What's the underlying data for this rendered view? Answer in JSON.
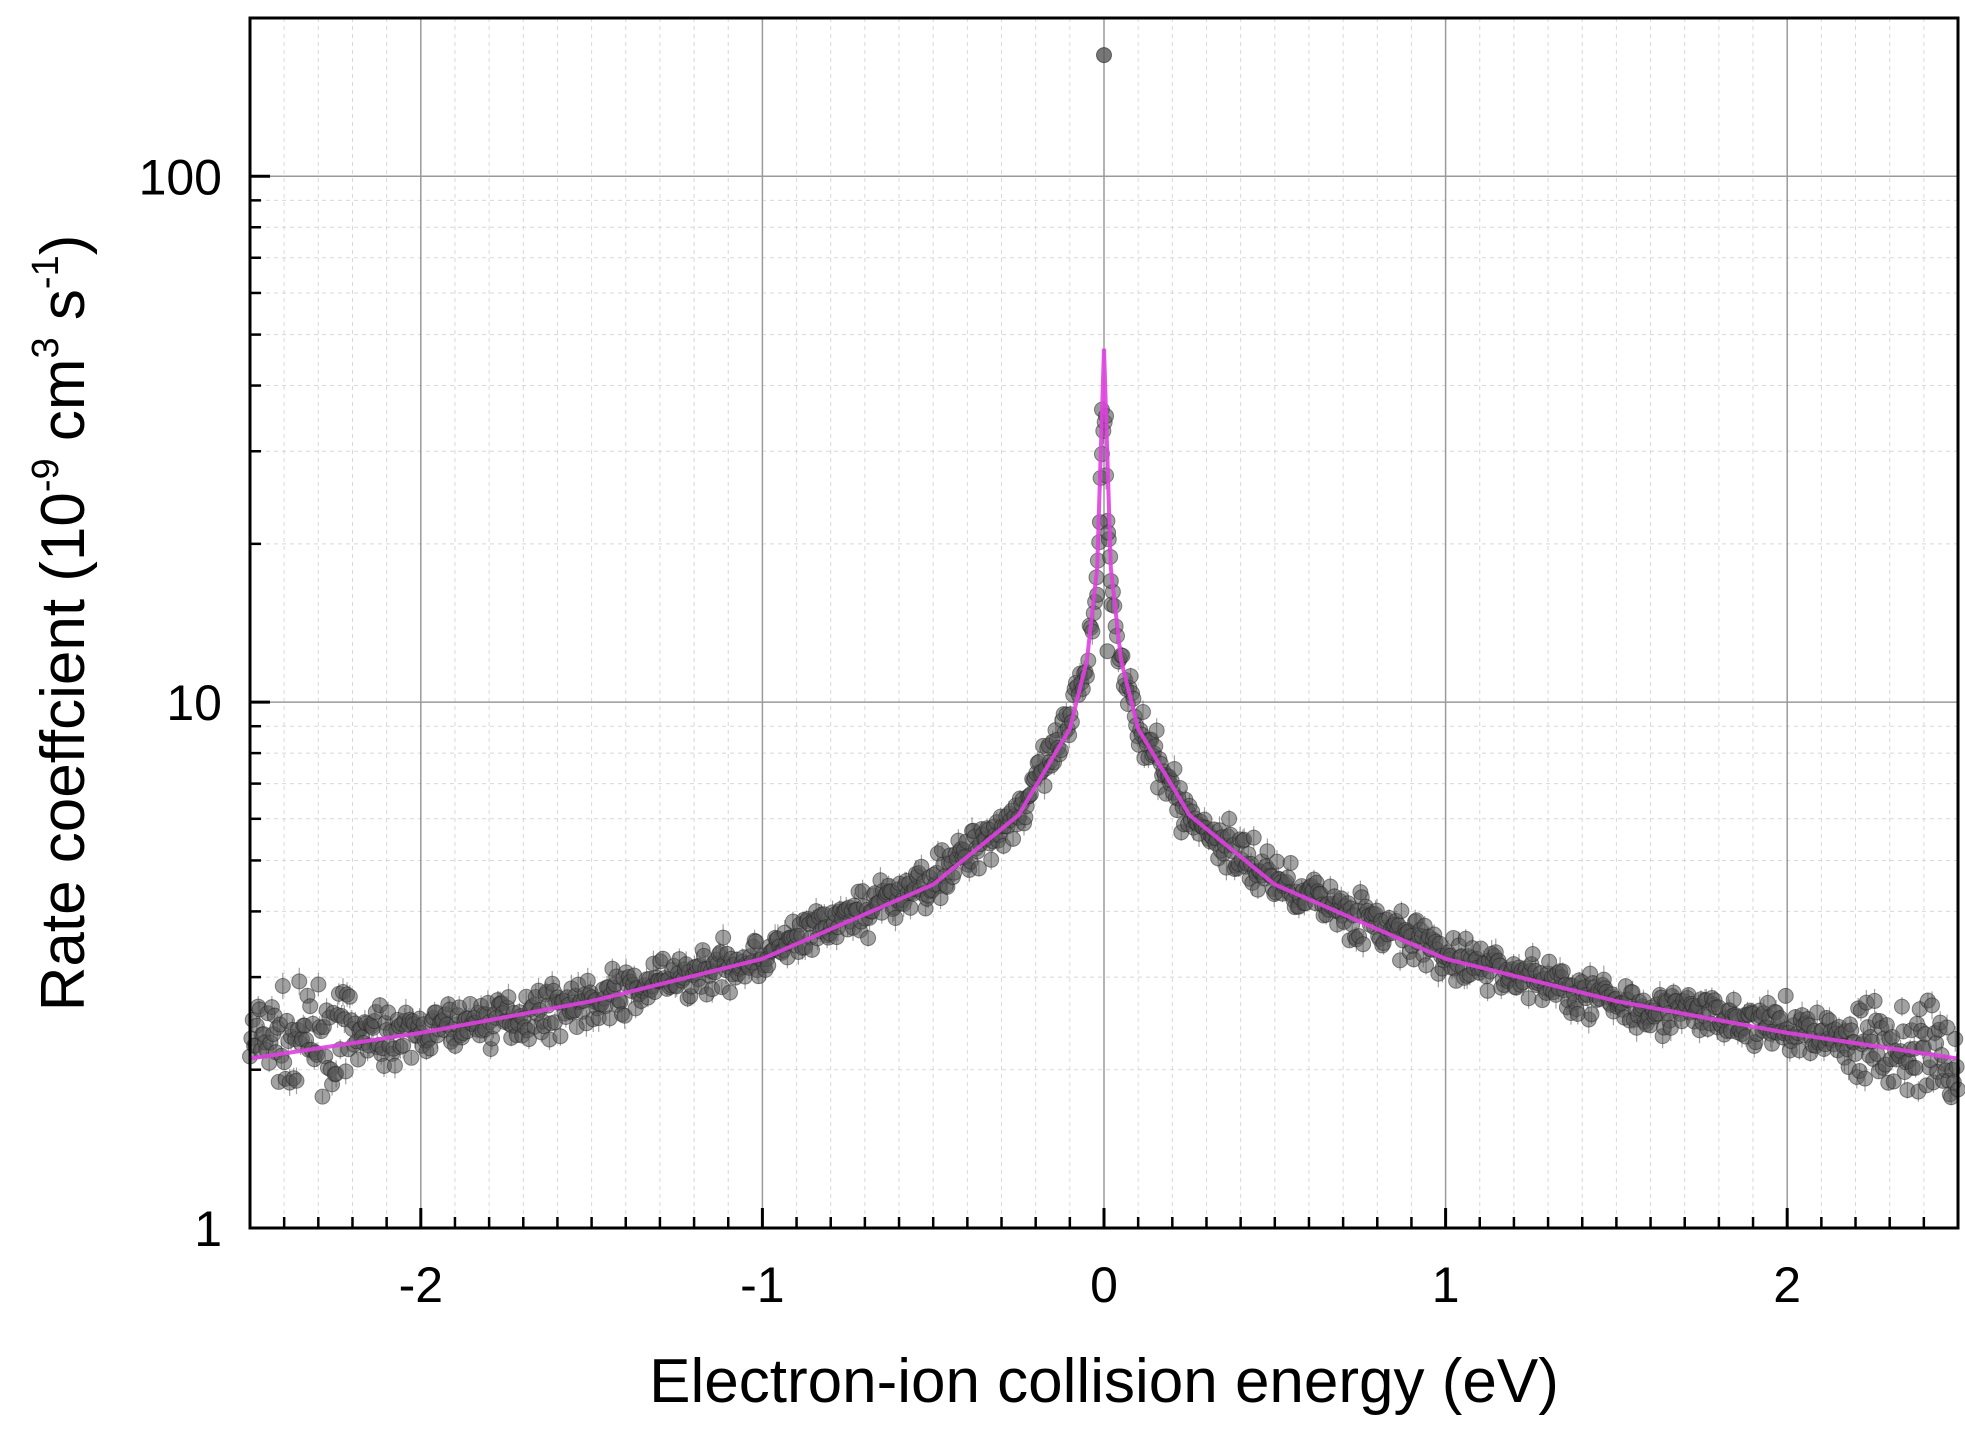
{
  "chart_data": {
    "type": "scatter",
    "title": "",
    "xlabel": "Electron-ion collision energy (eV)",
    "ylabel": {
      "prefix": "Rate coeffcient (10",
      "exp1": "-9",
      "mid1": " cm",
      "exp2": "3",
      "mid2": " s",
      "exp3": "-1",
      "suffix": ")"
    },
    "xlim": [
      -2.5,
      2.5
    ],
    "ylim": [
      1,
      200
    ],
    "yscale": "log",
    "grid": true,
    "x_ticks": [
      {
        "value": -2,
        "label": "-2"
      },
      {
        "value": -1,
        "label": "-1"
      },
      {
        "value": 0,
        "label": "0"
      },
      {
        "value": 1,
        "label": "1"
      },
      {
        "value": 2,
        "label": "2"
      }
    ],
    "y_ticks": [
      {
        "value": 1,
        "label": "1"
      },
      {
        "value": 10,
        "label": "10"
      },
      {
        "value": 100,
        "label": "100"
      }
    ],
    "series": [
      {
        "kind": "scatter-with-error-bars",
        "color": "#555555",
        "description_points": [
          {
            "x": -2.5,
            "y": 2.25
          },
          {
            "x": -2.0,
            "y": 2.35
          },
          {
            "x": -1.5,
            "y": 2.7
          },
          {
            "x": -1.0,
            "y": 3.3
          },
          {
            "x": -0.5,
            "y": 4.6
          },
          {
            "x": -0.25,
            "y": 6.2
          },
          {
            "x": -0.1,
            "y": 9.0
          },
          {
            "x": -0.05,
            "y": 12.0
          },
          {
            "x": -0.02,
            "y": 17.0
          },
          {
            "x": 0.0,
            "y": 36.0
          },
          {
            "x": 0.02,
            "y": 17.0
          },
          {
            "x": 0.05,
            "y": 12.0
          },
          {
            "x": 0.1,
            "y": 8.8
          },
          {
            "x": 0.25,
            "y": 6.0
          },
          {
            "x": 0.5,
            "y": 4.6
          },
          {
            "x": 1.0,
            "y": 3.3
          },
          {
            "x": 1.5,
            "y": 2.7
          },
          {
            "x": 2.0,
            "y": 2.4
          },
          {
            "x": 2.5,
            "y": 2.1
          }
        ],
        "outlier": {
          "x": 0.0,
          "y": 170
        }
      },
      {
        "kind": "fit-line",
        "color": "#e040e0",
        "points": [
          {
            "x": -2.5,
            "y": 2.1
          },
          {
            "x": -2.0,
            "y": 2.35
          },
          {
            "x": -1.5,
            "y": 2.7
          },
          {
            "x": -1.0,
            "y": 3.25
          },
          {
            "x": -0.5,
            "y": 4.5
          },
          {
            "x": -0.25,
            "y": 6.1
          },
          {
            "x": -0.1,
            "y": 8.9
          },
          {
            "x": -0.05,
            "y": 12.0
          },
          {
            "x": -0.02,
            "y": 18.0
          },
          {
            "x": 0.0,
            "y": 47.0
          },
          {
            "x": 0.02,
            "y": 18.0
          },
          {
            "x": 0.05,
            "y": 12.0
          },
          {
            "x": 0.1,
            "y": 8.9
          },
          {
            "x": 0.25,
            "y": 6.1
          },
          {
            "x": 0.5,
            "y": 4.5
          },
          {
            "x": 1.0,
            "y": 3.25
          },
          {
            "x": 1.5,
            "y": 2.7
          },
          {
            "x": 2.0,
            "y": 2.35
          },
          {
            "x": 2.5,
            "y": 2.1
          }
        ]
      }
    ]
  }
}
